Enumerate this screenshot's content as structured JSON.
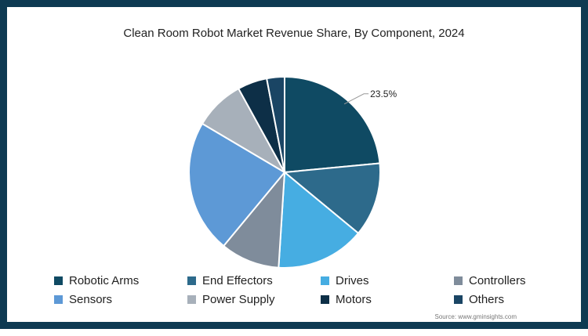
{
  "chart_data": {
    "type": "pie",
    "title": "Clean Room Robot Market Revenue Share, By Component, 2024",
    "slices": [
      {
        "label": "Robotic Arms",
        "value": 23.5,
        "color": "#0f4a63",
        "data_label": "23.5%"
      },
      {
        "label": "End Effectors",
        "value": 12.5,
        "color": "#2d6a8b",
        "data_label": ""
      },
      {
        "label": "Drives",
        "value": 15.0,
        "color": "#46ade2",
        "data_label": ""
      },
      {
        "label": "Controllers",
        "value": 10.0,
        "color": "#7f8c9b",
        "data_label": ""
      },
      {
        "label": "Sensors",
        "value": 22.5,
        "color": "#5d99d6",
        "data_label": ""
      },
      {
        "label": "Power Supply",
        "value": 8.5,
        "color": "#a7b0ba",
        "data_label": ""
      },
      {
        "label": "Motors",
        "value": 5.0,
        "color": "#0d2f47",
        "data_label": ""
      },
      {
        "label": "Others",
        "value": 3.0,
        "color": "#1a4564",
        "data_label": ""
      }
    ],
    "legend_position": "bottom",
    "start_angle_deg": 0,
    "direction": "clockwise"
  },
  "source": "Source: www.gminsights.com"
}
